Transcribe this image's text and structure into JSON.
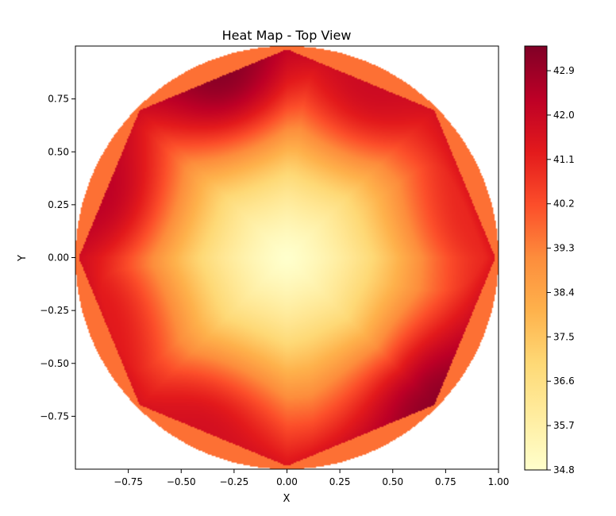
{
  "chart_data": {
    "type": "heatmap",
    "title": "Heat Map - Top View",
    "xlabel": "X",
    "ylabel": "Y",
    "xlim": [
      -1.0,
      1.0
    ],
    "ylim": [
      -1.0,
      1.0
    ],
    "x_ticks": [
      -0.75,
      -0.5,
      -0.25,
      0.0,
      0.25,
      0.5,
      0.75,
      1.0
    ],
    "x_tick_labels": [
      "−0.75",
      "−0.50",
      "−0.25",
      "0.00",
      "0.25",
      "0.50",
      "0.75",
      "1.00"
    ],
    "y_ticks": [
      0.75,
      0.5,
      0.25,
      0.0,
      -0.25,
      -0.5,
      -0.75
    ],
    "y_tick_labels": [
      "0.75",
      "0.50",
      "0.25",
      "0.00",
      "−0.25",
      "−0.50",
      "−0.75"
    ],
    "colormap": [
      "#ffffcc",
      "#ffeda0",
      "#fed976",
      "#feb24c",
      "#fd8d3c",
      "#fc4e2a",
      "#e31a1c",
      "#bd0026",
      "#800026"
    ],
    "colorbar": {
      "vmin": 34.8,
      "vmax": 43.4,
      "ticks": [
        34.8,
        35.7,
        36.6,
        37.5,
        38.4,
        39.3,
        40.2,
        41.1,
        42.0,
        42.9
      ],
      "tick_labels": [
        "34.8",
        "35.7",
        "36.6",
        "37.5",
        "38.4",
        "39.3",
        "40.2",
        "41.1",
        "42.0",
        "42.9"
      ]
    },
    "center_value": 34.8,
    "outer_ring_value": 39.6,
    "hotspots": [
      {
        "x": -0.3,
        "y": 0.85,
        "value": 43.2
      },
      {
        "x": 0.7,
        "y": -0.68,
        "value": 43.1
      },
      {
        "x": -0.9,
        "y": 0.3,
        "value": 42.3
      },
      {
        "x": 0.4,
        "y": 0.8,
        "value": 41.9
      },
      {
        "x": -0.4,
        "y": -0.82,
        "value": 41.7
      },
      {
        "x": -0.92,
        "y": -0.3,
        "value": 41.3
      },
      {
        "x": 0.92,
        "y": 0.2,
        "value": 41.0
      }
    ],
    "grid": false
  }
}
